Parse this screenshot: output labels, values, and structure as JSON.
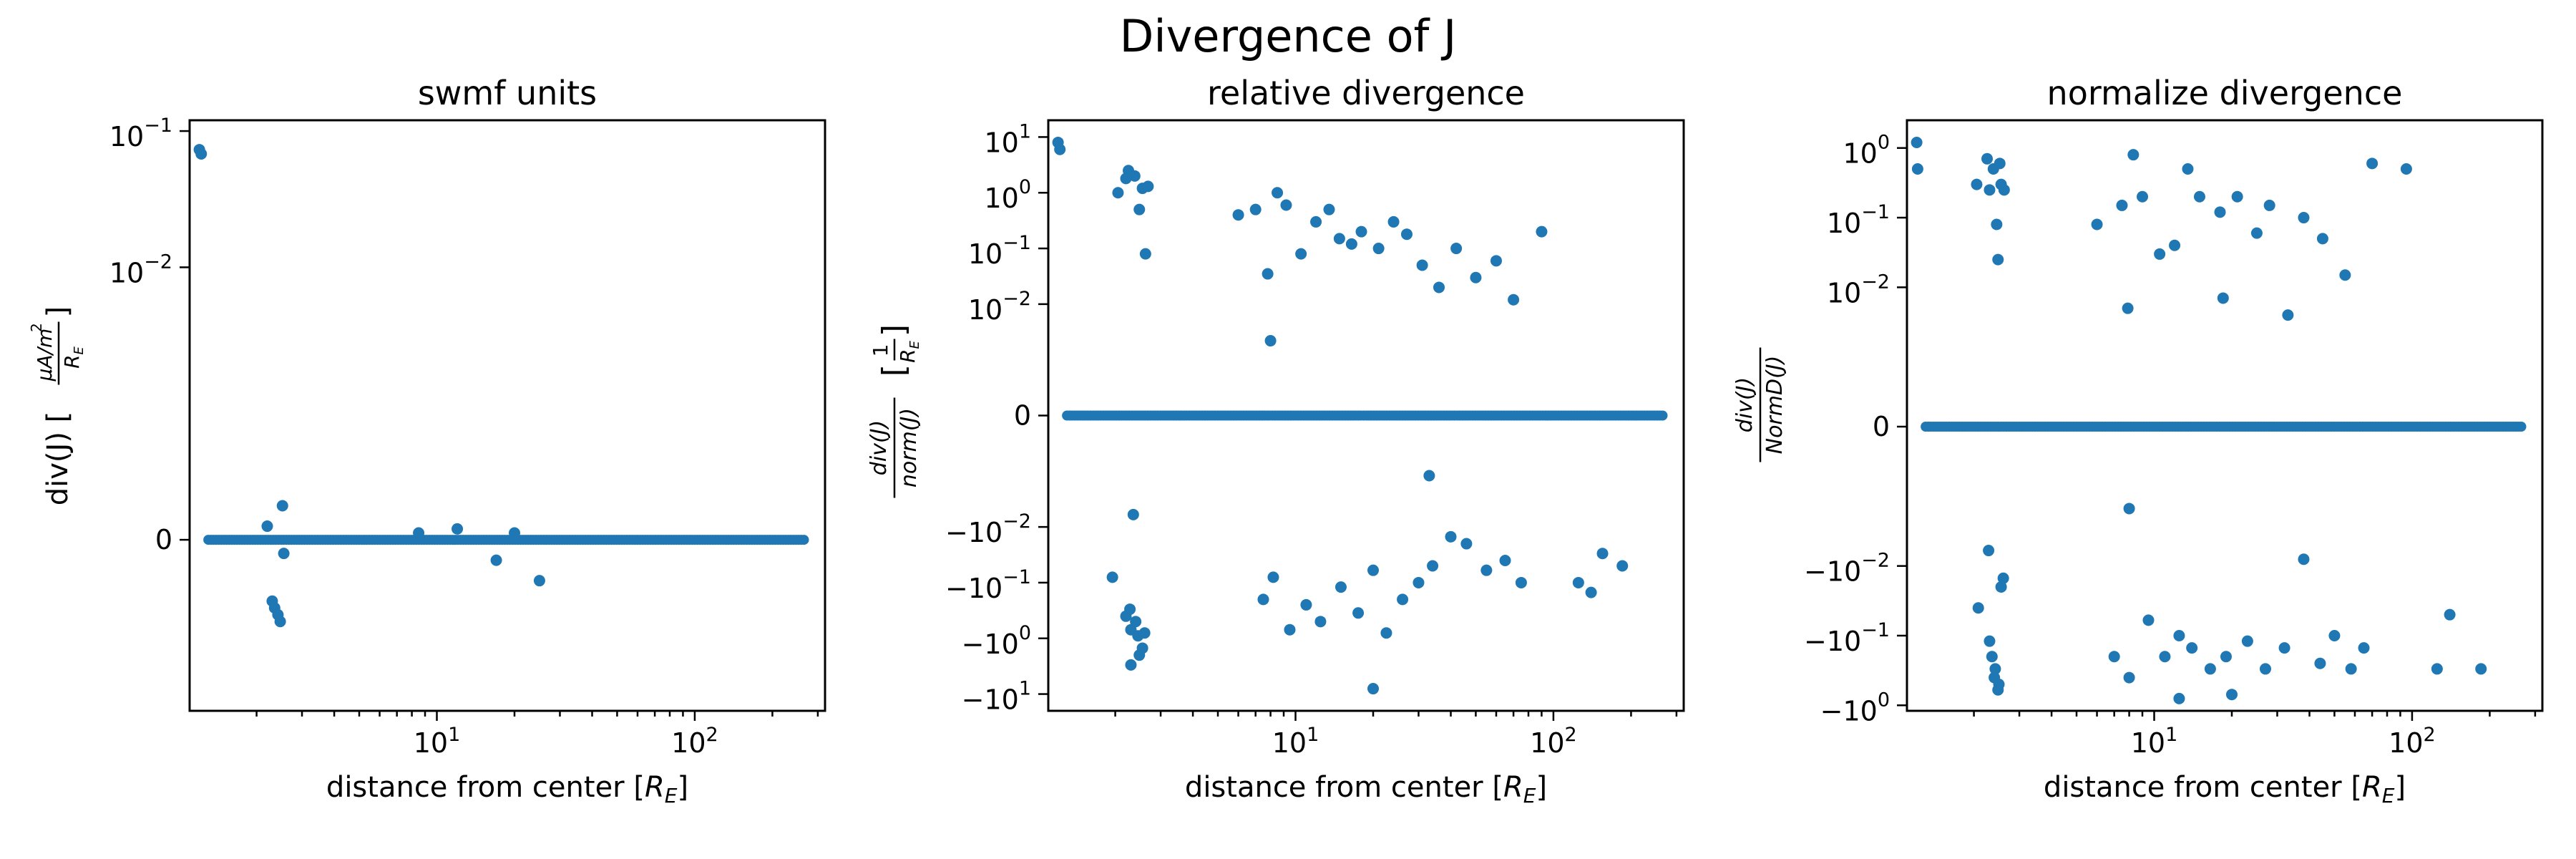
{
  "figure": {
    "suptitle": "Divergence of J",
    "color": "#1f77b4"
  },
  "chart_data": [
    {
      "type": "scatter",
      "title": "swmf units",
      "xlabel": "distance from center [R_E]",
      "xlabel_parts": {
        "prefix": "distance from center [",
        "var": "R",
        "sub": "E",
        "suffix": "]"
      },
      "ylabel": "div(J) [(μA/m²)/R_E]",
      "ylabel_parts": {
        "prefix": "div(J) [",
        "num": "μA/m",
        "num_sup": "2",
        "den": "R",
        "den_sub": "E",
        "suffix": "]"
      },
      "xscale": "log",
      "xlim": [
        1.1,
        320
      ],
      "yscale": "symlog",
      "yscale_params": {
        "linthresh": 0.001,
        "base": 10
      },
      "ylim": [
        -0.0018,
        0.12
      ],
      "x_ticks": [
        {
          "value": 10,
          "base": "10",
          "exp": "1"
        },
        {
          "value": 100,
          "base": "10",
          "exp": "2"
        }
      ],
      "y_ticks": [
        {
          "value": 0.1,
          "base": "10",
          "exp": "−1"
        },
        {
          "value": 0.01,
          "base": "10",
          "exp": "−2"
        },
        {
          "value": 0,
          "text": "0"
        }
      ],
      "x": [
        1.2,
        1.22,
        2.3,
        2.35,
        2.42,
        2.47,
        2.52,
        2.55,
        2.2,
        8.5,
        12.0,
        17.0,
        20.0,
        25.0
      ],
      "y": [
        0.073,
        0.068,
        -0.00045,
        -0.0005,
        -0.00055,
        -0.0006,
        0.00025,
        -0.0001,
        0.0001,
        5e-05,
        8e-05,
        -0.00015,
        5e-05,
        -0.0003
      ],
      "band": {
        "x_start": 1.3,
        "x_end": 265,
        "y": 0,
        "count": 230
      }
    },
    {
      "type": "scatter",
      "title": "relative divergence",
      "xlabel": "distance from center [R_E]",
      "xlabel_parts": {
        "prefix": "distance from center [",
        "var": "R",
        "sub": "E",
        "suffix": "]"
      },
      "ylabel": "div(J)/norm(J) [1/R_E]",
      "ylabel_parts": {
        "num": "div(J)",
        "den": "norm(J)",
        "bracket_num": "1",
        "bracket_den": "R",
        "bracket_den_sub": "E"
      },
      "xscale": "log",
      "xlim": [
        1.1,
        320
      ],
      "yscale": "symlog",
      "yscale_params": {
        "linthresh": 0.001,
        "base": 10
      },
      "ylim": [
        -20,
        20
      ],
      "x_ticks": [
        {
          "value": 10,
          "base": "10",
          "exp": "1"
        },
        {
          "value": 100,
          "base": "10",
          "exp": "2"
        }
      ],
      "y_ticks": [
        {
          "value": 10,
          "base": "10",
          "exp": "1"
        },
        {
          "value": 1,
          "base": "10",
          "exp": "0"
        },
        {
          "value": 0.1,
          "base": "10",
          "exp": "−1"
        },
        {
          "value": 0.01,
          "base": "10",
          "exp": "−2"
        },
        {
          "value": 0,
          "text": "0"
        },
        {
          "value": -0.01,
          "base": "−10",
          "exp": "−2"
        },
        {
          "value": -0.1,
          "base": "−10",
          "exp": "−1"
        },
        {
          "value": -1,
          "base": "−10",
          "exp": "0"
        },
        {
          "value": -10,
          "base": "−10",
          "exp": "1"
        }
      ],
      "x": [
        1.2,
        1.22,
        2.05,
        2.25,
        2.38,
        2.55,
        2.62,
        2.48,
        2.68,
        2.2,
        6.0,
        7.0,
        7.8,
        8.5,
        9.2,
        10.5,
        12.0,
        13.5,
        14.8,
        16.5,
        18.0,
        21.0,
        24.0,
        27.0,
        31.0,
        36.0,
        42.0,
        50.0,
        60.0,
        70.0,
        90.0,
        1.95,
        2.2,
        2.3,
        2.45,
        2.55,
        2.3,
        2.4,
        2.6,
        2.48,
        2.35,
        2.28,
        7.5,
        8.2,
        9.5,
        11.0,
        12.5,
        15.0,
        17.5,
        20.0,
        22.5,
        26.0,
        30.0,
        34.0,
        40.0,
        46.0,
        55.0,
        65.0,
        75.0,
        125.0,
        140.0,
        155.0,
        185.0,
        20.0,
        8.0,
        33.0
      ],
      "y": [
        8,
        6,
        1.0,
        2.5,
        2.0,
        1.2,
        0.08,
        0.5,
        1.3,
        1.8,
        0.4,
        0.5,
        0.035,
        1.0,
        0.6,
        0.08,
        0.3,
        0.5,
        0.15,
        0.12,
        0.2,
        0.1,
        0.3,
        0.18,
        0.05,
        0.02,
        0.1,
        0.03,
        0.06,
        0.012,
        0.2,
        -0.08,
        -0.4,
        -0.7,
        -0.9,
        -1.5,
        -3.0,
        -0.5,
        -0.8,
        -2.0,
        -0.006,
        -0.3,
        -0.2,
        -0.08,
        -0.7,
        -0.25,
        -0.5,
        -0.12,
        -0.35,
        -0.06,
        -0.8,
        -0.2,
        -0.1,
        -0.05,
        -0.015,
        -0.02,
        -0.06,
        -0.04,
        -0.1,
        -0.1,
        -0.15,
        -0.03,
        -0.05,
        -8,
        0.0022,
        -0.0012
      ],
      "band": {
        "x_start": 1.3,
        "x_end": 265,
        "y": 0,
        "count": 230
      }
    },
    {
      "type": "scatter",
      "title": "normalize divergence",
      "xlabel": "distance from center [R_E]",
      "xlabel_parts": {
        "prefix": "distance from center [",
        "var": "R",
        "sub": "E",
        "suffix": "]"
      },
      "ylabel": "div(J)/NormD(J)",
      "ylabel_parts": {
        "num": "div(J)",
        "den": "NormD(J)"
      },
      "xscale": "log",
      "xlim": [
        1.1,
        320
      ],
      "yscale": "symlog",
      "yscale_params": {
        "linthresh": 0.001,
        "base": 10
      },
      "ylim": [
        -1.2,
        2.5
      ],
      "x_ticks": [
        {
          "value": 10,
          "base": "10",
          "exp": "1"
        },
        {
          "value": 100,
          "base": "10",
          "exp": "2"
        }
      ],
      "y_ticks": [
        {
          "value": 1,
          "base": "10",
          "exp": "0"
        },
        {
          "value": 0.1,
          "base": "10",
          "exp": "−1"
        },
        {
          "value": 0.01,
          "base": "10",
          "exp": "−2"
        },
        {
          "value": 0,
          "text": "0"
        },
        {
          "value": -0.01,
          "base": "−10",
          "exp": "−2"
        },
        {
          "value": -0.1,
          "base": "−10",
          "exp": "−1"
        },
        {
          "value": -1,
          "base": "−10",
          "exp": "0"
        }
      ],
      "x": [
        1.2,
        1.21,
        2.05,
        2.25,
        2.38,
        2.52,
        2.62,
        2.45,
        2.48,
        2.55,
        2.3,
        6.0,
        7.5,
        8.3,
        9.0,
        10.5,
        12.0,
        13.5,
        15.0,
        18.0,
        21.0,
        25.0,
        28.0,
        33.0,
        38.0,
        45.0,
        55.0,
        70.0,
        95.0,
        7.9,
        18.5,
        2.08,
        2.3,
        2.35,
        2.42,
        2.5,
        2.55,
        2.6,
        2.28,
        2.4,
        2.48,
        7.0,
        8.0,
        9.5,
        11.0,
        12.5,
        14.0,
        16.5,
        19.0,
        23.0,
        27.0,
        32.0,
        38.0,
        44.0,
        50.0,
        58.0,
        65.0,
        125.0,
        140.0,
        185.0,
        12.5,
        20.0,
        8.0
      ],
      "y": [
        1.2,
        0.5,
        0.3,
        0.7,
        0.5,
        0.6,
        0.25,
        0.08,
        0.025,
        0.3,
        0.25,
        0.08,
        0.15,
        0.8,
        0.2,
        0.03,
        0.04,
        0.5,
        0.2,
        0.12,
        0.2,
        0.06,
        0.15,
        0.004,
        0.1,
        0.05,
        0.015,
        0.6,
        0.5,
        0.005,
        0.007,
        -0.04,
        -0.12,
        -0.2,
        -0.3,
        -0.5,
        -0.02,
        -0.015,
        -0.006,
        -0.4,
        -0.6,
        -0.2,
        -0.4,
        -0.06,
        -0.2,
        -0.1,
        -0.15,
        -0.3,
        -0.2,
        -0.12,
        -0.3,
        -0.15,
        -0.008,
        -0.25,
        -0.1,
        -0.3,
        -0.15,
        -0.3,
        -0.05,
        -0.3,
        -0.8,
        -0.7,
        -0.0015
      ],
      "band": {
        "x_start": 1.3,
        "x_end": 265,
        "y": 0,
        "count": 230
      }
    }
  ]
}
